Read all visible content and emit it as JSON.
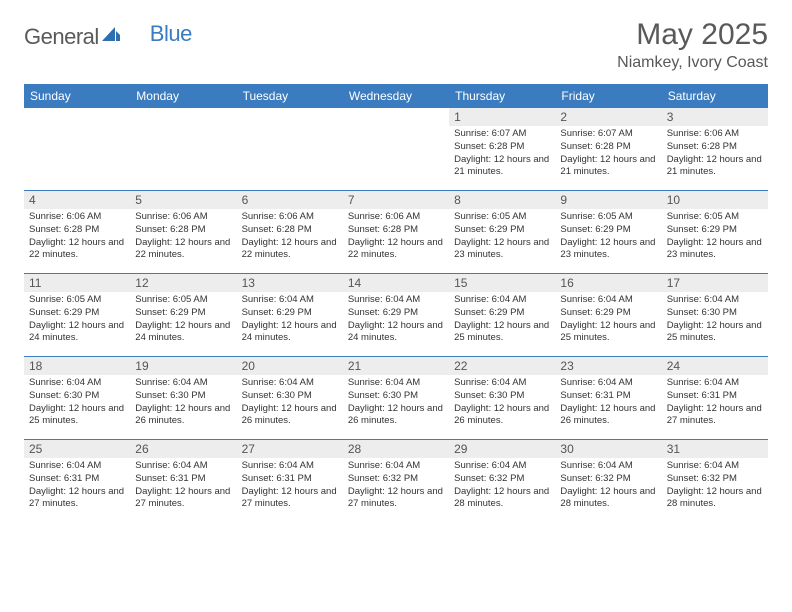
{
  "brand": {
    "word1": "General",
    "word2": "Blue",
    "word1_color": "#5a5a5a",
    "word2_color": "#3b7bbf",
    "icon_fill": "#2f6fb0"
  },
  "title": "May 2025",
  "location": "Niamkey, Ivory Coast",
  "colors": {
    "header_bg": "#3b7bbf",
    "header_text": "#ffffff",
    "daynum_bg": "#ededed",
    "daynum_text": "#555555",
    "cell_border": "#3b7bbf",
    "body_text": "#333333",
    "title_text": "#595959",
    "page_bg": "#ffffff"
  },
  "typography": {
    "title_fontsize": 30,
    "location_fontsize": 16,
    "dayheader_fontsize": 12,
    "daynum_fontsize": 12,
    "info_fontsize": 9.5,
    "font_family": "Arial"
  },
  "day_names": [
    "Sunday",
    "Monday",
    "Tuesday",
    "Wednesday",
    "Thursday",
    "Friday",
    "Saturday"
  ],
  "weeks": [
    [
      {
        "n": "",
        "sr": "",
        "ss": "",
        "dl": ""
      },
      {
        "n": "",
        "sr": "",
        "ss": "",
        "dl": ""
      },
      {
        "n": "",
        "sr": "",
        "ss": "",
        "dl": ""
      },
      {
        "n": "",
        "sr": "",
        "ss": "",
        "dl": ""
      },
      {
        "n": "1",
        "sr": "Sunrise: 6:07 AM",
        "ss": "Sunset: 6:28 PM",
        "dl": "Daylight: 12 hours and 21 minutes."
      },
      {
        "n": "2",
        "sr": "Sunrise: 6:07 AM",
        "ss": "Sunset: 6:28 PM",
        "dl": "Daylight: 12 hours and 21 minutes."
      },
      {
        "n": "3",
        "sr": "Sunrise: 6:06 AM",
        "ss": "Sunset: 6:28 PM",
        "dl": "Daylight: 12 hours and 21 minutes."
      }
    ],
    [
      {
        "n": "4",
        "sr": "Sunrise: 6:06 AM",
        "ss": "Sunset: 6:28 PM",
        "dl": "Daylight: 12 hours and 22 minutes."
      },
      {
        "n": "5",
        "sr": "Sunrise: 6:06 AM",
        "ss": "Sunset: 6:28 PM",
        "dl": "Daylight: 12 hours and 22 minutes."
      },
      {
        "n": "6",
        "sr": "Sunrise: 6:06 AM",
        "ss": "Sunset: 6:28 PM",
        "dl": "Daylight: 12 hours and 22 minutes."
      },
      {
        "n": "7",
        "sr": "Sunrise: 6:06 AM",
        "ss": "Sunset: 6:28 PM",
        "dl": "Daylight: 12 hours and 22 minutes."
      },
      {
        "n": "8",
        "sr": "Sunrise: 6:05 AM",
        "ss": "Sunset: 6:29 PM",
        "dl": "Daylight: 12 hours and 23 minutes."
      },
      {
        "n": "9",
        "sr": "Sunrise: 6:05 AM",
        "ss": "Sunset: 6:29 PM",
        "dl": "Daylight: 12 hours and 23 minutes."
      },
      {
        "n": "10",
        "sr": "Sunrise: 6:05 AM",
        "ss": "Sunset: 6:29 PM",
        "dl": "Daylight: 12 hours and 23 minutes."
      }
    ],
    [
      {
        "n": "11",
        "sr": "Sunrise: 6:05 AM",
        "ss": "Sunset: 6:29 PM",
        "dl": "Daylight: 12 hours and 24 minutes."
      },
      {
        "n": "12",
        "sr": "Sunrise: 6:05 AM",
        "ss": "Sunset: 6:29 PM",
        "dl": "Daylight: 12 hours and 24 minutes."
      },
      {
        "n": "13",
        "sr": "Sunrise: 6:04 AM",
        "ss": "Sunset: 6:29 PM",
        "dl": "Daylight: 12 hours and 24 minutes."
      },
      {
        "n": "14",
        "sr": "Sunrise: 6:04 AM",
        "ss": "Sunset: 6:29 PM",
        "dl": "Daylight: 12 hours and 24 minutes."
      },
      {
        "n": "15",
        "sr": "Sunrise: 6:04 AM",
        "ss": "Sunset: 6:29 PM",
        "dl": "Daylight: 12 hours and 25 minutes."
      },
      {
        "n": "16",
        "sr": "Sunrise: 6:04 AM",
        "ss": "Sunset: 6:29 PM",
        "dl": "Daylight: 12 hours and 25 minutes."
      },
      {
        "n": "17",
        "sr": "Sunrise: 6:04 AM",
        "ss": "Sunset: 6:30 PM",
        "dl": "Daylight: 12 hours and 25 minutes."
      }
    ],
    [
      {
        "n": "18",
        "sr": "Sunrise: 6:04 AM",
        "ss": "Sunset: 6:30 PM",
        "dl": "Daylight: 12 hours and 25 minutes."
      },
      {
        "n": "19",
        "sr": "Sunrise: 6:04 AM",
        "ss": "Sunset: 6:30 PM",
        "dl": "Daylight: 12 hours and 26 minutes."
      },
      {
        "n": "20",
        "sr": "Sunrise: 6:04 AM",
        "ss": "Sunset: 6:30 PM",
        "dl": "Daylight: 12 hours and 26 minutes."
      },
      {
        "n": "21",
        "sr": "Sunrise: 6:04 AM",
        "ss": "Sunset: 6:30 PM",
        "dl": "Daylight: 12 hours and 26 minutes."
      },
      {
        "n": "22",
        "sr": "Sunrise: 6:04 AM",
        "ss": "Sunset: 6:30 PM",
        "dl": "Daylight: 12 hours and 26 minutes."
      },
      {
        "n": "23",
        "sr": "Sunrise: 6:04 AM",
        "ss": "Sunset: 6:31 PM",
        "dl": "Daylight: 12 hours and 26 minutes."
      },
      {
        "n": "24",
        "sr": "Sunrise: 6:04 AM",
        "ss": "Sunset: 6:31 PM",
        "dl": "Daylight: 12 hours and 27 minutes."
      }
    ],
    [
      {
        "n": "25",
        "sr": "Sunrise: 6:04 AM",
        "ss": "Sunset: 6:31 PM",
        "dl": "Daylight: 12 hours and 27 minutes."
      },
      {
        "n": "26",
        "sr": "Sunrise: 6:04 AM",
        "ss": "Sunset: 6:31 PM",
        "dl": "Daylight: 12 hours and 27 minutes."
      },
      {
        "n": "27",
        "sr": "Sunrise: 6:04 AM",
        "ss": "Sunset: 6:31 PM",
        "dl": "Daylight: 12 hours and 27 minutes."
      },
      {
        "n": "28",
        "sr": "Sunrise: 6:04 AM",
        "ss": "Sunset: 6:32 PM",
        "dl": "Daylight: 12 hours and 27 minutes."
      },
      {
        "n": "29",
        "sr": "Sunrise: 6:04 AM",
        "ss": "Sunset: 6:32 PM",
        "dl": "Daylight: 12 hours and 28 minutes."
      },
      {
        "n": "30",
        "sr": "Sunrise: 6:04 AM",
        "ss": "Sunset: 6:32 PM",
        "dl": "Daylight: 12 hours and 28 minutes."
      },
      {
        "n": "31",
        "sr": "Sunrise: 6:04 AM",
        "ss": "Sunset: 6:32 PM",
        "dl": "Daylight: 12 hours and 28 minutes."
      }
    ]
  ]
}
